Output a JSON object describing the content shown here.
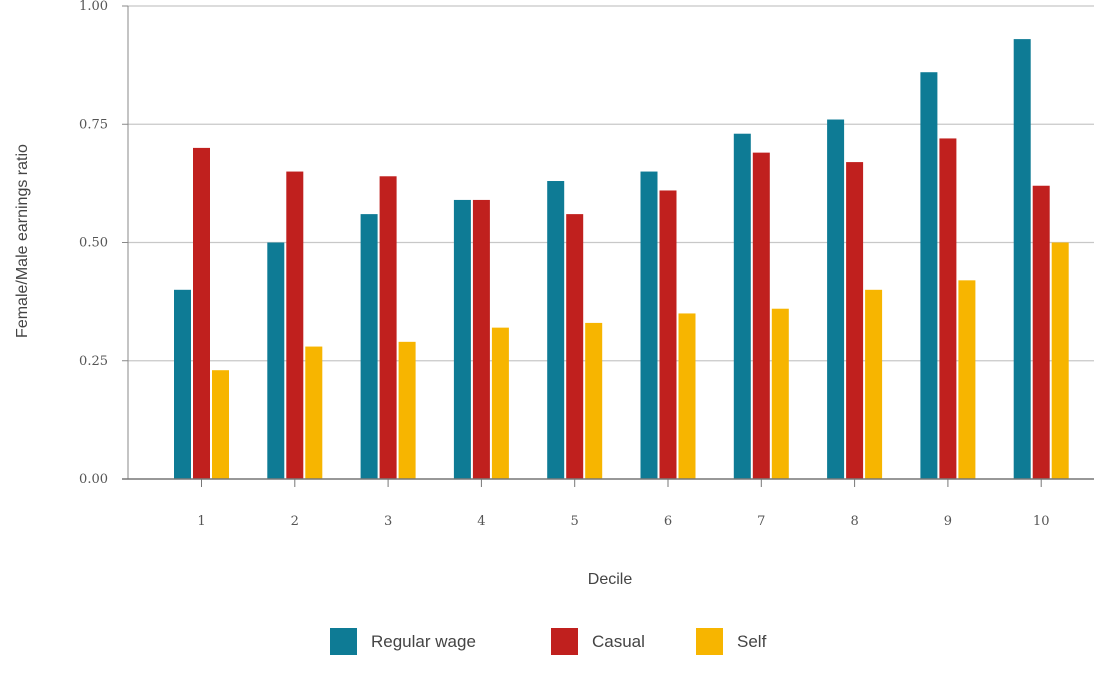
{
  "chart_data": {
    "type": "bar",
    "title": "",
    "xlabel": "Decile",
    "ylabel": "Female/Male earnings ratio",
    "categories": [
      "1",
      "2",
      "3",
      "4",
      "5",
      "6",
      "7",
      "8",
      "9",
      "10"
    ],
    "y_ticks": [
      "0.00",
      "0.25",
      "0.50",
      "0.75",
      "1.00"
    ],
    "y_tick_values": [
      0,
      0.25,
      0.5,
      0.75,
      1.0
    ],
    "ylim": [
      0,
      1.0
    ],
    "grid": true,
    "legend_position": "bottom",
    "series": [
      {
        "name": "Regular wage",
        "color": "#0e7b95",
        "values": [
          0.4,
          0.5,
          0.56,
          0.59,
          0.63,
          0.65,
          0.73,
          0.76,
          0.86,
          0.93
        ]
      },
      {
        "name": "Casual",
        "color": "#c0201e",
        "values": [
          0.7,
          0.65,
          0.64,
          0.59,
          0.56,
          0.61,
          0.69,
          0.67,
          0.72,
          0.62
        ]
      },
      {
        "name": "Self",
        "color": "#f7b500",
        "values": [
          0.23,
          0.28,
          0.29,
          0.32,
          0.33,
          0.35,
          0.36,
          0.4,
          0.42,
          0.5
        ]
      }
    ]
  }
}
